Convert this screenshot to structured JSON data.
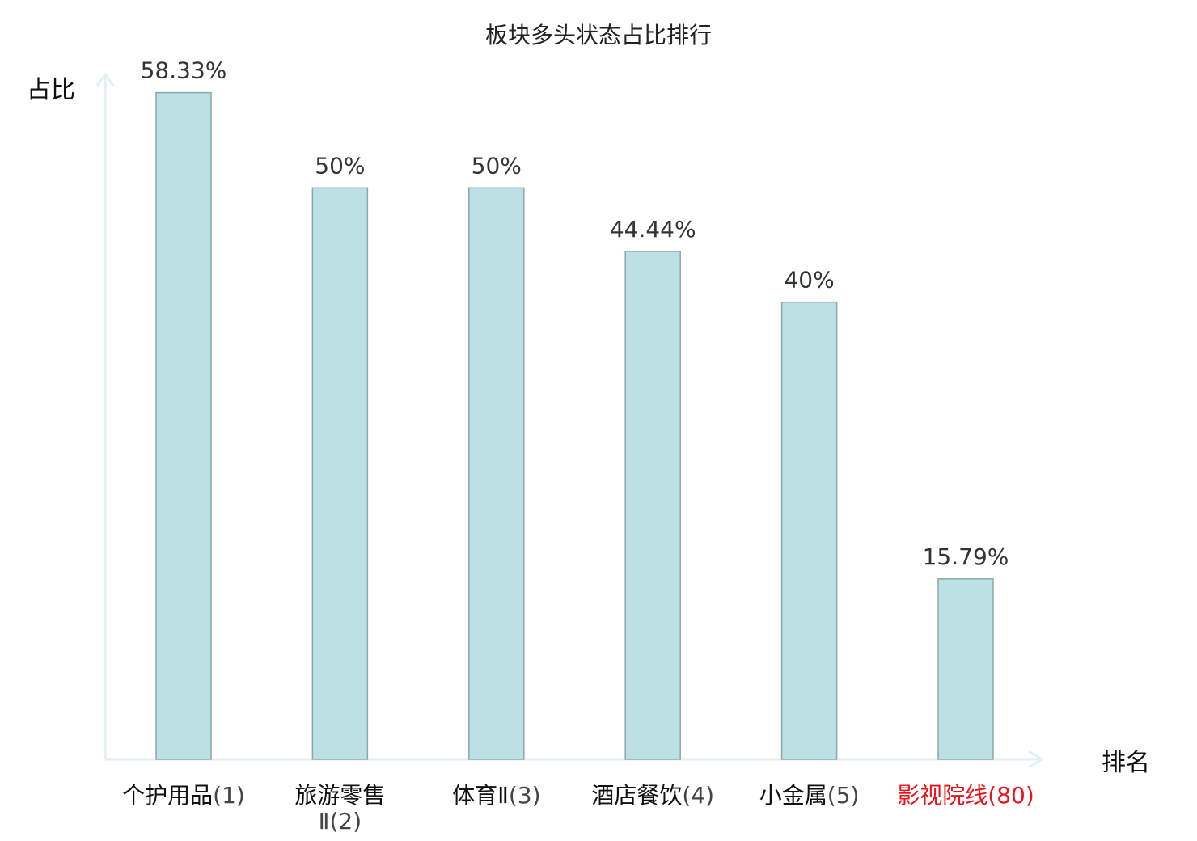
{
  "chart_data": {
    "type": "bar",
    "title": "板块多头状态占比排行",
    "xlabel": "排名",
    "ylabel": "占比",
    "categories": [
      {
        "name": "个护用品",
        "rank": "(1)",
        "line2": ""
      },
      {
        "name": "旅游零售",
        "rank": "Ⅱ(2)",
        "line2": "true"
      },
      {
        "name": "体育Ⅱ",
        "rank": "(3)",
        "line2": ""
      },
      {
        "name": "酒店餐饮",
        "rank": "(4)",
        "line2": ""
      },
      {
        "name": "小金属",
        "rank": "(5)",
        "line2": ""
      },
      {
        "name": "影视院线",
        "rank": "(80)",
        "line2": "",
        "highlight": true
      }
    ],
    "values": [
      58.33,
      50,
      50,
      44.44,
      40,
      15.79
    ],
    "value_labels": [
      "58.33%",
      "50%",
      "50%",
      "44.44%",
      "40%",
      "15.79%"
    ],
    "ylim": [
      0,
      60
    ],
    "grid": false,
    "colors": {
      "bar_fill": "#bce0e3",
      "bar_stroke": "#8aa8aa",
      "axis": "#dff2ef",
      "highlight_label": "#e8141b",
      "label": "#111111"
    }
  }
}
